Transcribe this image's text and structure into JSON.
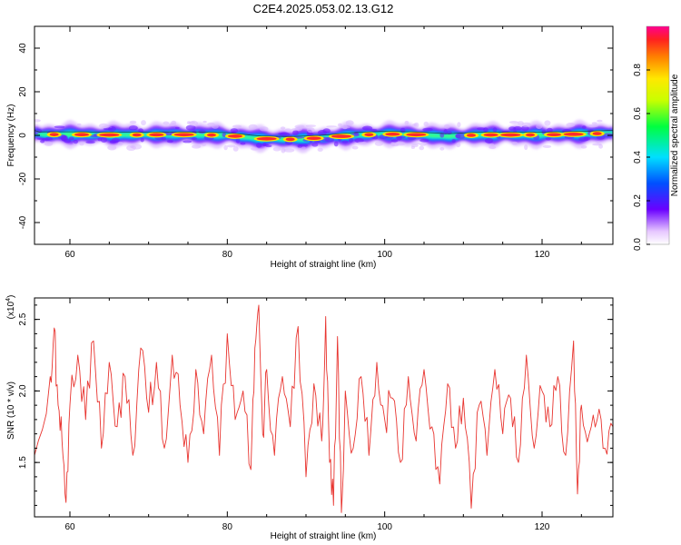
{
  "title": "C2E4.2025.053.02.13.G12",
  "colors": {
    "snr_line": "#e8342f",
    "axis": "#000000",
    "background": "#ffffff"
  },
  "chart_data": [
    {
      "type": "heatmap",
      "xlabel": "Height of straight line (km)",
      "ylabel": "Frequency (Hz)",
      "xlim": [
        55.5,
        129
      ],
      "ylim": [
        -50,
        50
      ],
      "x_ticks": [
        60,
        80,
        100,
        120
      ],
      "x_tick_labels": [
        "60",
        "80",
        "100",
        "120"
      ],
      "y_ticks": [
        40,
        20,
        0,
        -20,
        -40
      ],
      "y_tick_labels": [
        "40",
        "20",
        "0",
        "-20",
        "-40"
      ],
      "colorbar": {
        "label": "Normalized spectral amplitude",
        "range": [
          0,
          1
        ],
        "ticks": [
          0.0,
          0.2,
          0.4,
          0.6,
          0.8
        ],
        "tick_labels": [
          "0.0",
          "0.2",
          "0.4",
          "0.6",
          "0.8"
        ]
      },
      "ridge_centre_hz": [
        [
          56,
          0.3
        ],
        [
          60,
          0.4
        ],
        [
          64,
          0.2
        ],
        [
          68,
          0.2
        ],
        [
          72,
          0.3
        ],
        [
          76,
          0.3
        ],
        [
          80,
          0.0
        ],
        [
          84,
          -1.5
        ],
        [
          88,
          -1.8
        ],
        [
          92,
          -1.2
        ],
        [
          96,
          0.0
        ],
        [
          100,
          0.6
        ],
        [
          104,
          0.3
        ],
        [
          108,
          -0.5
        ],
        [
          112,
          0.2
        ],
        [
          116,
          0.2
        ],
        [
          120,
          0.2
        ],
        [
          124,
          0.5
        ],
        [
          129,
          1.0
        ]
      ],
      "peak_heights_km": [
        58,
        61.5,
        65,
        68.5,
        71,
        74.5,
        78,
        81,
        85,
        88,
        91,
        94.5,
        98,
        101,
        104,
        111,
        113.5,
        116,
        118.5,
        121.5,
        124,
        127
      ]
    },
    {
      "type": "line",
      "xlabel": "Height of straight line (km)",
      "ylabel": "SNR (10 * v/v)",
      "y_scale_label": "(x10",
      "y_scale_exponent": "4",
      "y_scale_close": ")",
      "xlim": [
        55.5,
        129
      ],
      "ylim": [
        1.12,
        2.65
      ],
      "x_ticks": [
        60,
        80,
        100,
        120
      ],
      "x_tick_labels": [
        "60",
        "80",
        "100",
        "120"
      ],
      "y_ticks": [
        2.5,
        2.0,
        1.5
      ],
      "y_tick_labels": [
        "2.5",
        "2.0",
        "1.5"
      ],
      "series": [
        {
          "color": "#e8342f",
          "x": [
            55.5,
            57.5,
            58,
            58.5,
            59,
            59.5,
            60,
            61,
            62,
            63,
            64,
            65,
            66,
            67,
            68,
            69,
            70,
            71,
            72,
            73,
            74,
            75,
            76,
            77,
            78,
            79,
            80,
            81,
            82,
            83,
            83.5,
            84,
            84.5,
            85,
            86,
            87,
            88,
            89,
            90,
            91,
            92,
            92.5,
            93,
            93.5,
            94,
            94.5,
            95,
            96,
            97,
            98,
            99,
            100,
            101,
            102,
            103,
            104,
            105,
            106,
            107,
            108,
            109,
            110,
            111,
            112,
            113,
            114,
            115,
            116,
            117,
            118,
            119,
            120,
            121,
            122,
            123,
            124,
            124.5,
            125,
            126,
            127,
            128,
            129
          ],
          "y": [
            1.55,
            2.1,
            2.44,
            1.9,
            1.65,
            1.22,
            1.9,
            2.25,
            1.8,
            2.35,
            1.6,
            2.2,
            1.75,
            2.1,
            1.55,
            2.3,
            1.85,
            2.2,
            1.6,
            2.25,
            1.9,
            1.5,
            2.15,
            1.7,
            2.25,
            1.55,
            2.4,
            1.8,
            2.0,
            1.45,
            2.3,
            2.6,
            1.7,
            2.15,
            1.55,
            2.1,
            1.75,
            2.45,
            1.4,
            2.05,
            1.65,
            2.52,
            1.5,
            1.2,
            2.38,
            1.15,
            2.0,
            1.6,
            2.1,
            1.55,
            2.2,
            1.8,
            1.95,
            1.5,
            2.1,
            1.65,
            2.15,
            1.75,
            1.35,
            2.05,
            1.6,
            1.95,
            1.18,
            1.9,
            1.55,
            2.15,
            1.7,
            1.95,
            1.5,
            2.25,
            1.6,
            2.0,
            1.75,
            2.1,
            1.55,
            2.35,
            1.28,
            1.9,
            1.7,
            1.8,
            1.6,
            1.75
          ]
        }
      ]
    }
  ]
}
